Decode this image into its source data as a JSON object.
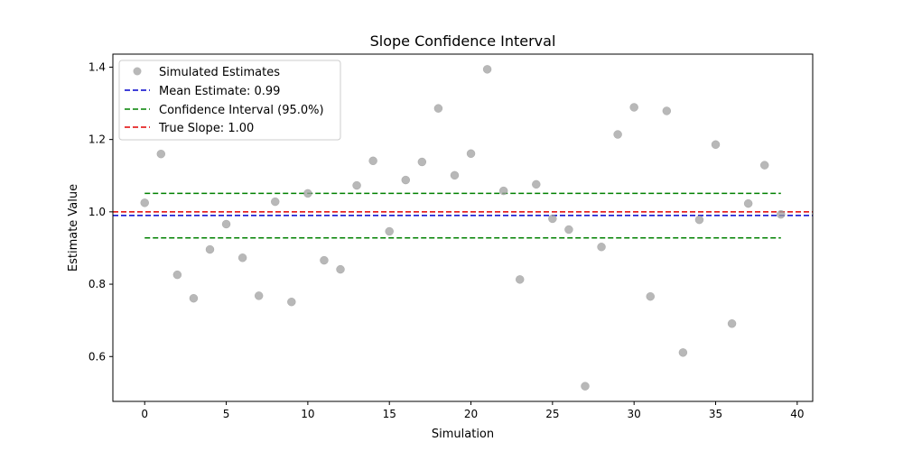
{
  "chart_data": {
    "type": "scatter",
    "title": "Slope Confidence Interval",
    "xlabel": "Simulation",
    "ylabel": "Estimate Value",
    "xlim": [
      -1.95,
      40.95
    ],
    "ylim": [
      0.476,
      1.436
    ],
    "xticks": [
      0,
      5,
      10,
      15,
      20,
      25,
      30,
      35,
      40
    ],
    "yticks": [
      0.6,
      0.8,
      1.0,
      1.2,
      1.4
    ],
    "x": [
      0,
      1,
      2,
      3,
      4,
      5,
      6,
      7,
      8,
      9,
      10,
      11,
      12,
      13,
      14,
      15,
      16,
      17,
      18,
      19,
      20,
      21,
      22,
      23,
      24,
      25,
      26,
      27,
      28,
      29,
      30,
      31,
      32,
      33,
      34,
      35,
      36,
      37,
      38,
      39
    ],
    "y": [
      1.025,
      1.16,
      0.826,
      0.761,
      0.896,
      0.966,
      0.873,
      0.768,
      1.028,
      0.751,
      1.051,
      0.866,
      0.841,
      1.073,
      1.141,
      0.946,
      1.088,
      1.138,
      1.286,
      1.101,
      1.161,
      1.394,
      1.058,
      0.813,
      1.076,
      0.981,
      0.951,
      0.518,
      0.903,
      1.214,
      1.289,
      0.766,
      1.279,
      0.611,
      0.978,
      1.186,
      0.691,
      1.023,
      1.129,
      0.993
    ],
    "point_color": "#a0a0a0",
    "mean_estimate": 0.99,
    "ci_lower": 0.928,
    "ci_upper": 1.051,
    "ci_x_range": [
      0,
      39
    ],
    "true_slope": 1.0,
    "colors": {
      "mean": "#0000cc",
      "ci": "#008000",
      "true": "#e00000"
    },
    "grid": false,
    "legend_position": "upper-left",
    "legend": [
      "Simulated Estimates",
      "Mean Estimate: 0.99",
      "Confidence Interval (95.0%)",
      "True Slope: 1.00"
    ]
  }
}
